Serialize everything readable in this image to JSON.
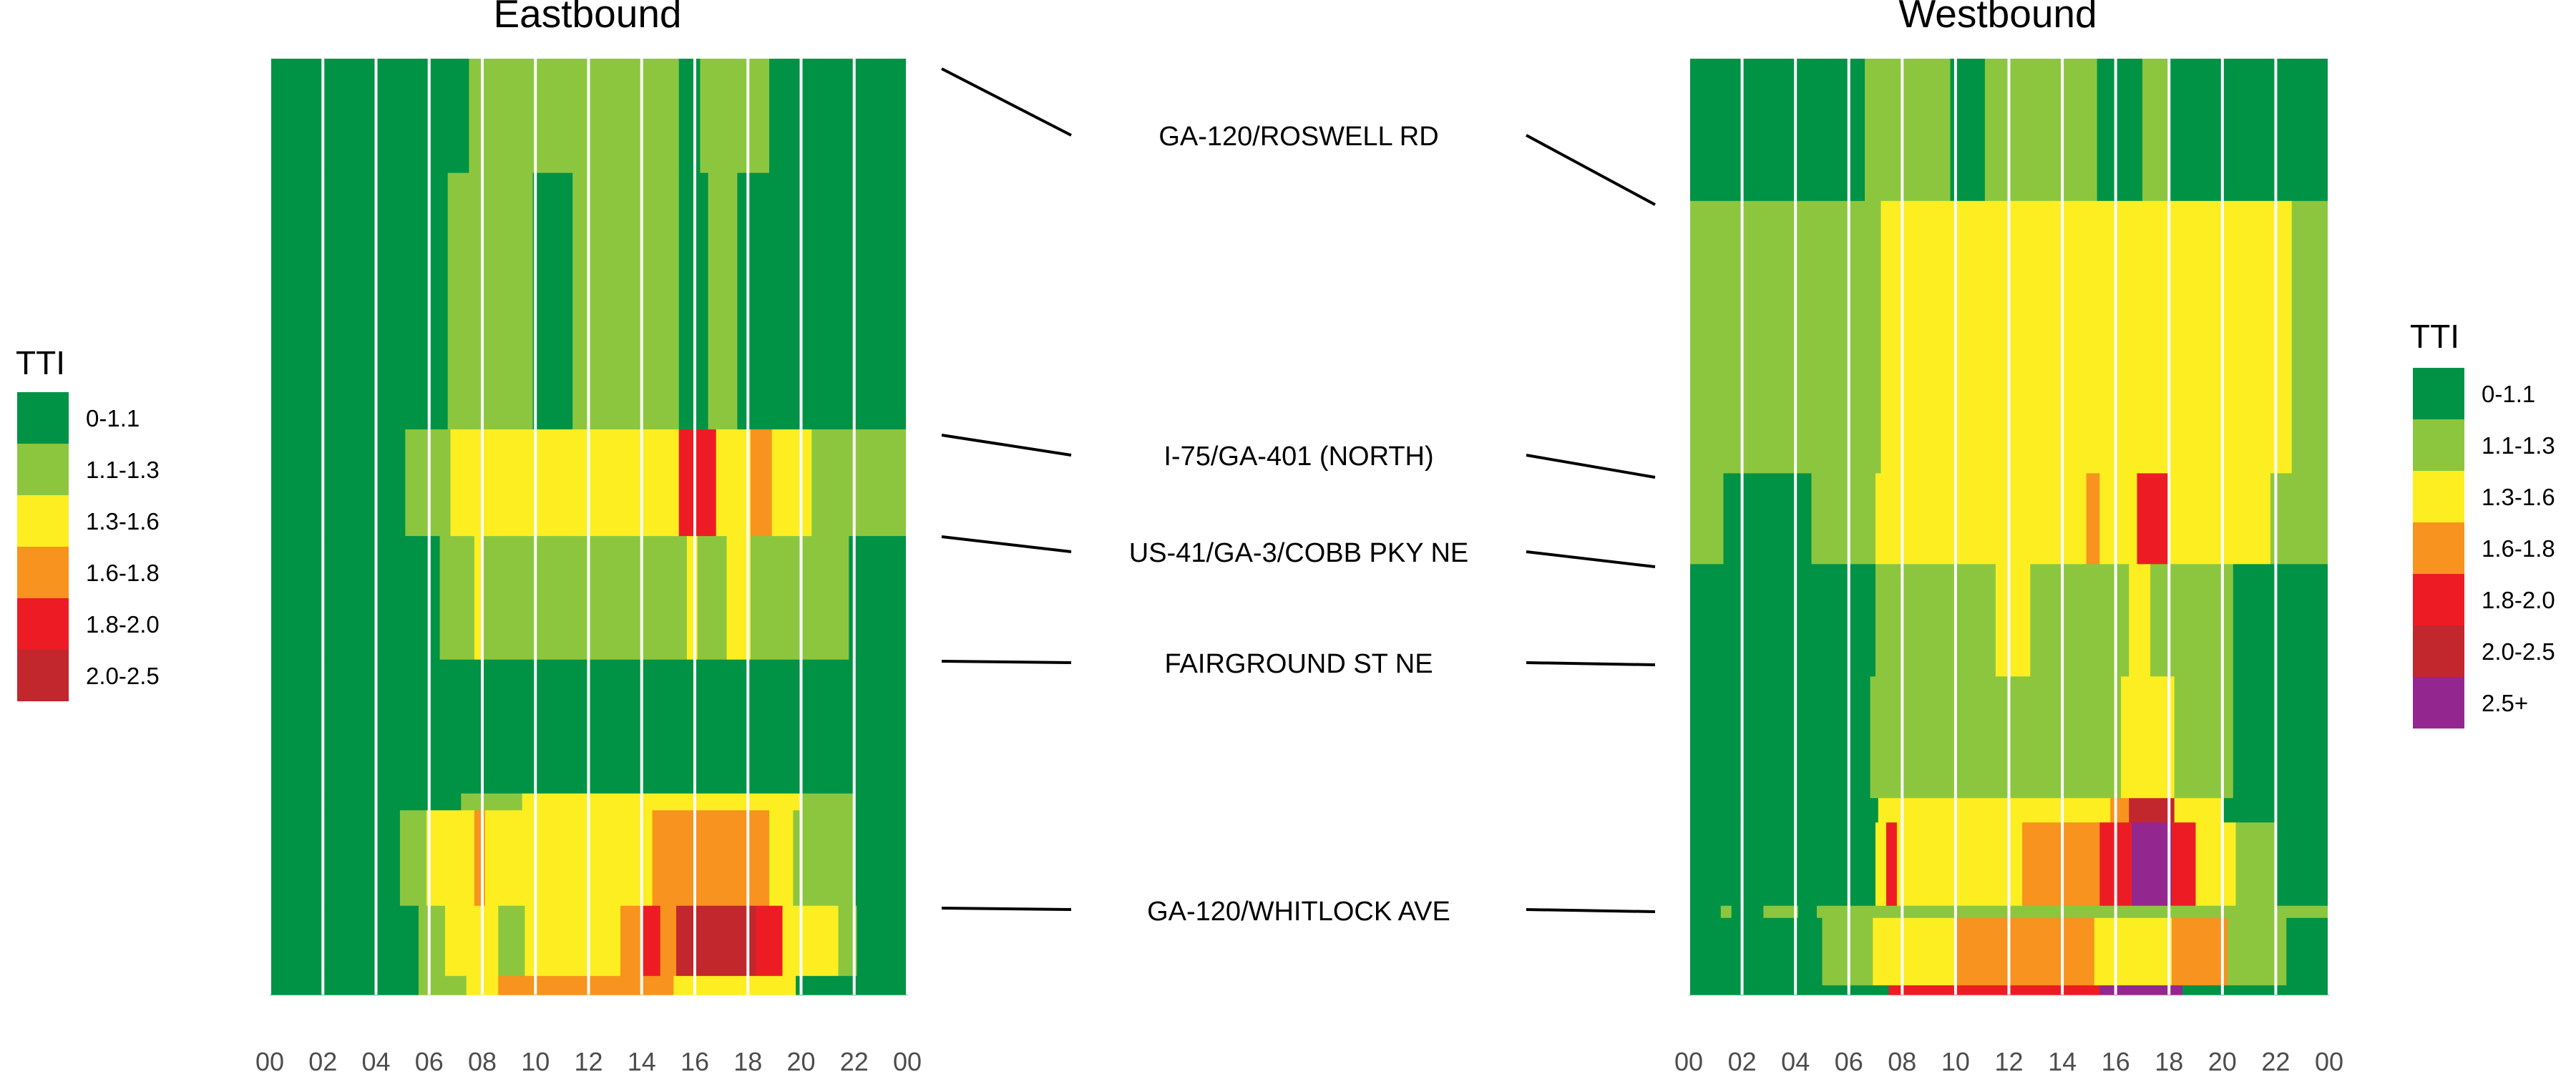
{
  "chart_data": {
    "type": "heatmap",
    "colors": {
      "0-1.1": "#009245",
      "1.1-1.3": "#8cc63f",
      "1.3-1.6": "#fcee21",
      "1.6-1.8": "#f7931e",
      "1.8-2.0": "#ed1c24",
      "2.0-2.5": "#c1272d",
      "2.5+": "#93278f"
    },
    "panels": [
      {
        "title": "Eastbound",
        "x_ticks": [
          "00",
          "02",
          "04",
          "06",
          "08",
          "10",
          "12",
          "14",
          "16",
          "18",
          "20",
          "22",
          "00"
        ],
        "x_range_hours": [
          0,
          24
        ],
        "legend_title": "TTI",
        "legend": [
          "0-1.1",
          "1.1-1.3",
          "1.3-1.6",
          "1.6-1.8",
          "1.8-2.0",
          "2.0-2.5"
        ],
        "rows": [
          {
            "y": [
              0,
              0.122
            ],
            "cells": [
              [
                "0-1.1",
                0,
                7.5
              ],
              [
                "1.1-1.3",
                7.5,
                15.4
              ],
              [
                "0-1.1",
                15.4,
                16.2
              ],
              [
                "1.1-1.3",
                16.2,
                18.8
              ],
              [
                "0-1.1",
                18.8,
                24
              ]
            ]
          },
          {
            "y": [
              0.122,
              0.396
            ],
            "cells": [
              [
                "0-1.1",
                0,
                6.7
              ],
              [
                "1.1-1.3",
                6.7,
                9.9
              ],
              [
                "0-1.1",
                9.9,
                11.4
              ],
              [
                "1.1-1.3",
                11.4,
                15.4
              ],
              [
                "0-1.1",
                15.4,
                16.5
              ],
              [
                "1.1-1.3",
                16.5,
                17.6
              ],
              [
                "0-1.1",
                17.6,
                24
              ]
            ]
          },
          {
            "y": [
              0.396,
              0.51
            ],
            "cells": [
              [
                "0-1.1",
                0,
                5.1
              ],
              [
                "1.1-1.3",
                5.1,
                6.8
              ],
              [
                "1.3-1.6",
                6.8,
                15.4
              ],
              [
                "1.8-2.0",
                15.4,
                16.8
              ],
              [
                "1.3-1.6",
                16.8,
                18.1
              ],
              [
                "1.6-1.8",
                18.1,
                18.9
              ],
              [
                "1.3-1.6",
                18.9,
                20.4
              ],
              [
                "1.1-1.3",
                20.4,
                24
              ]
            ]
          },
          {
            "y": [
              0.51,
              0.642
            ],
            "cells": [
              [
                "0-1.1",
                0,
                6.4
              ],
              [
                "1.1-1.3",
                6.4,
                7.7
              ],
              [
                "1.3-1.6",
                7.7,
                8
              ],
              [
                "1.1-1.3",
                8,
                15.7
              ],
              [
                "1.3-1.6",
                15.7,
                16.1
              ],
              [
                "1.1-1.3",
                16.1,
                17.2
              ],
              [
                "1.3-1.6",
                17.2,
                18.1
              ],
              [
                "1.1-1.3",
                18.1,
                21.8
              ],
              [
                "0-1.1",
                21.8,
                24
              ]
            ]
          },
          {
            "y": [
              0.642,
              0.785
            ],
            "cells": [
              [
                "0-1.1",
                0,
                24
              ]
            ]
          },
          {
            "y": [
              0.785,
              0.803
            ],
            "cells": [
              [
                "0-1.1",
                0,
                7.2
              ],
              [
                "1.1-1.3",
                7.2,
                9.5
              ],
              [
                "1.3-1.6",
                9.5,
                20
              ],
              [
                "1.1-1.3",
                20,
                22
              ],
              [
                "0-1.1",
                22,
                24
              ]
            ]
          },
          {
            "y": [
              0.803,
              0.905
            ],
            "cells": [
              [
                "0-1.1",
                0,
                4.9
              ],
              [
                "1.1-1.3",
                4.9,
                5.9
              ],
              [
                "1.3-1.6",
                5.9,
                7.7
              ],
              [
                "1.6-1.8",
                7.7,
                8.1
              ],
              [
                "1.3-1.6",
                8.1,
                14.4
              ],
              [
                "1.6-1.8",
                14.4,
                18.8
              ],
              [
                "1.3-1.6",
                18.8,
                19.7
              ],
              [
                "1.1-1.3",
                19.7,
                22
              ],
              [
                "0-1.1",
                22,
                24
              ]
            ]
          },
          {
            "y": [
              0.905,
              0.98
            ],
            "cells": [
              [
                "0-1.1",
                0,
                5.6
              ],
              [
                "1.1-1.3",
                5.6,
                6.6
              ],
              [
                "1.3-1.6",
                6.6,
                8.6
              ],
              [
                "1.1-1.3",
                8.6,
                9.6
              ],
              [
                "1.3-1.6",
                9.6,
                13.2
              ],
              [
                "1.6-1.8",
                13.2,
                14
              ],
              [
                "1.8-2.0",
                14,
                14.7
              ],
              [
                "1.6-1.8",
                14.7,
                15.3
              ],
              [
                "2.0-2.5",
                15.3,
                18.3
              ],
              [
                "1.8-2.0",
                18.3,
                19.3
              ],
              [
                "1.3-1.6",
                19.3,
                21.4
              ],
              [
                "1.1-1.3",
                21.4,
                22.1
              ],
              [
                "0-1.1",
                22.1,
                24
              ]
            ]
          },
          {
            "y": [
              0.98,
              1
            ],
            "cells": [
              [
                "0-1.1",
                0,
                5.6
              ],
              [
                "1.1-1.3",
                5.6,
                7.4
              ],
              [
                "1.3-1.6",
                7.4,
                8.6
              ],
              [
                "1.6-1.8",
                8.6,
                15.2
              ],
              [
                "1.3-1.6",
                15.2,
                19.8
              ],
              [
                "0-1.1",
                19.8,
                24
              ]
            ]
          }
        ]
      },
      {
        "title": "Westbound",
        "x_ticks": [
          "00",
          "02",
          "04",
          "06",
          "08",
          "10",
          "12",
          "14",
          "16",
          "18",
          "20",
          "22",
          "00"
        ],
        "x_range_hours": [
          0,
          24
        ],
        "legend_title": "TTI",
        "legend": [
          "0-1.1",
          "1.1-1.3",
          "1.3-1.6",
          "1.6-1.8",
          "1.8-2.0",
          "2.0-2.5",
          "2.5+"
        ],
        "rows": [
          {
            "y": [
              0,
              0.152
            ],
            "cells": [
              [
                "0-1.1",
                0,
                6.6
              ],
              [
                "1.1-1.3",
                6.6,
                9.8
              ],
              [
                "0-1.1",
                9.8,
                11.1
              ],
              [
                "1.1-1.3",
                11.1,
                15.3
              ],
              [
                "0-1.1",
                15.3,
                17
              ],
              [
                "1.1-1.3",
                17,
                18
              ],
              [
                "0-1.1",
                18,
                24
              ]
            ]
          },
          {
            "y": [
              0.152,
              0.443
            ],
            "cells": [
              [
                "1.1-1.3",
                0,
                7.2
              ],
              [
                "1.3-1.6",
                7.2,
                22.6
              ],
              [
                "1.1-1.3",
                22.6,
                24
              ]
            ]
          },
          {
            "y": [
              0.443,
              0.54
            ],
            "cells": [
              [
                "1.1-1.3",
                0,
                1.3
              ],
              [
                "0-1.1",
                1.3,
                4.6
              ],
              [
                "1.1-1.3",
                4.6,
                7
              ],
              [
                "1.3-1.6",
                7,
                14.9
              ],
              [
                "1.6-1.8",
                14.9,
                15.4
              ],
              [
                "1.3-1.6",
                15.4,
                16.8
              ],
              [
                "1.8-2.0",
                16.8,
                18
              ],
              [
                "1.3-1.6",
                18,
                21.8
              ],
              [
                "1.1-1.3",
                21.8,
                24
              ]
            ]
          },
          {
            "y": [
              0.54,
              0.66
            ],
            "cells": [
              [
                "0-1.1",
                0,
                7
              ],
              [
                "1.1-1.3",
                7,
                11.5
              ],
              [
                "1.3-1.6",
                11.5,
                12.8
              ],
              [
                "1.1-1.3",
                12.8,
                16.5
              ],
              [
                "1.3-1.6",
                16.5,
                17.3
              ],
              [
                "1.1-1.3",
                17.3,
                20.4
              ],
              [
                "0-1.1",
                20.4,
                24
              ]
            ]
          },
          {
            "y": [
              0.66,
              0.79
            ],
            "cells": [
              [
                "0-1.1",
                0,
                6.8
              ],
              [
                "1.1-1.3",
                6.8,
                16.2
              ],
              [
                "1.3-1.6",
                16.2,
                18.2
              ],
              [
                "1.1-1.3",
                18.2,
                20.4
              ],
              [
                "0-1.1",
                20.4,
                24
              ]
            ]
          },
          {
            "y": [
              0.79,
              0.816
            ],
            "cells": [
              [
                "0-1.1",
                0,
                7.1
              ],
              [
                "1.3-1.6",
                7.1,
                15.8
              ],
              [
                "1.6-1.8",
                15.8,
                16.5
              ],
              [
                "2.0-2.5",
                16.5,
                18.2
              ],
              [
                "1.3-1.6",
                18.2,
                20
              ],
              [
                "0-1.1",
                20,
                24
              ]
            ]
          },
          {
            "y": [
              0.816,
              0.905
            ],
            "cells": [
              [
                "0-1.1",
                0,
                7
              ],
              [
                "1.3-1.6",
                7,
                7.4
              ],
              [
                "1.8-2.0",
                7.4,
                7.8
              ],
              [
                "1.3-1.6",
                7.8,
                12.5
              ],
              [
                "1.6-1.8",
                12.5,
                15.4
              ],
              [
                "1.8-2.0",
                15.4,
                16.6
              ],
              [
                "2.5+",
                16.6,
                18.1
              ],
              [
                "1.8-2.0",
                18.1,
                19
              ],
              [
                "1.3-1.6",
                19,
                20.5
              ],
              [
                "1.1-1.3",
                20.5,
                22
              ],
              [
                "0-1.1",
                22,
                24
              ]
            ]
          },
          {
            "y": [
              0.905,
              0.918
            ],
            "cells": [
              [
                "0-1.1",
                0,
                1.2
              ],
              [
                "1.1-1.3",
                1.2,
                1.6
              ],
              [
                "0-1.1",
                1.6,
                2.8
              ],
              [
                "1.1-1.3",
                2.8,
                4.1
              ],
              [
                "0-1.1",
                4.1,
                4.8
              ],
              [
                "1.1-1.3",
                4.8,
                24
              ]
            ]
          },
          {
            "y": [
              0.918,
              0.99
            ],
            "cells": [
              [
                "0-1.1",
                0,
                5
              ],
              [
                "1.1-1.3",
                5,
                6.9
              ],
              [
                "1.3-1.6",
                6.9,
                10
              ],
              [
                "1.6-1.8",
                10,
                15.2
              ],
              [
                "1.3-1.6",
                15.2,
                18.1
              ],
              [
                "1.6-1.8",
                18.1,
                20.2
              ],
              [
                "1.1-1.3",
                20.2,
                22.4
              ],
              [
                "0-1.1",
                22.4,
                24
              ]
            ]
          },
          {
            "y": [
              0.99,
              1
            ],
            "cells": [
              [
                "0-1.1",
                0,
                7.5
              ],
              [
                "1.8-2.0",
                7.5,
                15.4
              ],
              [
                "2.5+",
                15.4,
                18.5
              ],
              [
                "0-1.1",
                18.5,
                24
              ]
            ]
          }
        ]
      }
    ],
    "segments": [
      {
        "label": "GA-120/ROSWELL RD"
      },
      {
        "label": "I-75/GA-401 (NORTH)"
      },
      {
        "label": "US-41/GA-3/COBB PKY NE"
      },
      {
        "label": "FAIRGROUND ST NE"
      },
      {
        "label": "GA-120/WHITLOCK AVE"
      }
    ]
  }
}
